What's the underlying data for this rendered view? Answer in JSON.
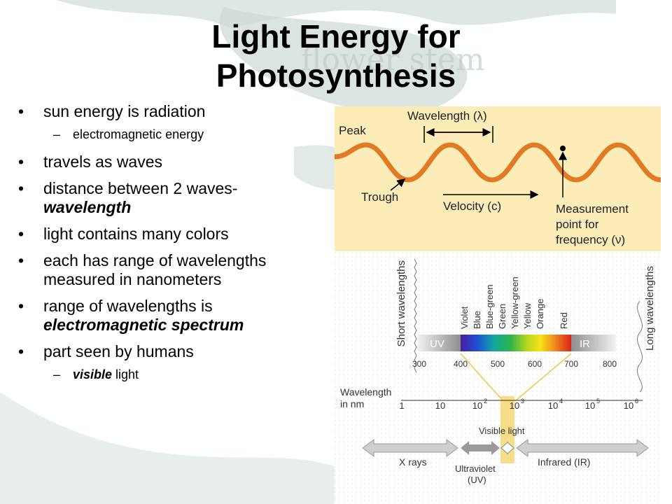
{
  "slide": {
    "title_line1": "Light Energy for",
    "title_line2": "Photosynthesis",
    "watermark": "flower stem"
  },
  "bullets": [
    {
      "text": "sun energy is radiation"
    },
    {
      "text": "electromagnetic energy"
    },
    {
      "text": "travels as waves"
    },
    {
      "text": "distance between 2 waves-",
      "em": "wavelength"
    },
    {
      "text": "light contains many colors"
    },
    {
      "text": "each has range of wavelengths measured in nanometers"
    },
    {
      "text": "range of wavelengths is",
      "em": "electromagnetic spectrum"
    },
    {
      "text": "part seen by humans"
    },
    {
      "em": "visible",
      "text": " light"
    }
  ],
  "wave_diagram": {
    "peak": "Peak",
    "wavelength": "Wavelength (λ)",
    "trough": "Trough",
    "velocity": "Velocity (c)",
    "measurement_line1": "Measurement",
    "measurement_line2": "point for",
    "measurement_line3": "frequency (ν)",
    "background": "#fbecb8",
    "wave_color": "#e07a24"
  },
  "spectrum_diagram": {
    "short": "Short wavelengths",
    "long": "Long wavelengths",
    "colors": [
      "Violet",
      "Blue",
      "Blue-green",
      "Green",
      "Yellow-green",
      "Yellow",
      "Orange",
      "Red"
    ],
    "uv": "UV",
    "ir": "IR",
    "nm_ticks": [
      "300",
      "400",
      "500",
      "600",
      "700",
      "800"
    ],
    "wl_line1": "Wavelength",
    "wl_line2": "in nm",
    "log_ticks": [
      "1",
      "10",
      "10",
      "10",
      "10",
      "10",
      "10"
    ],
    "log_exps": [
      "",
      "",
      "2",
      "3",
      "4",
      "5",
      "6"
    ],
    "visible": "Visible light",
    "xrays": "X rays",
    "ultraviolet_line1": "Ultraviolet",
    "ultraviolet_line2": "(UV)",
    "infrared": "Infrared (IR)"
  }
}
